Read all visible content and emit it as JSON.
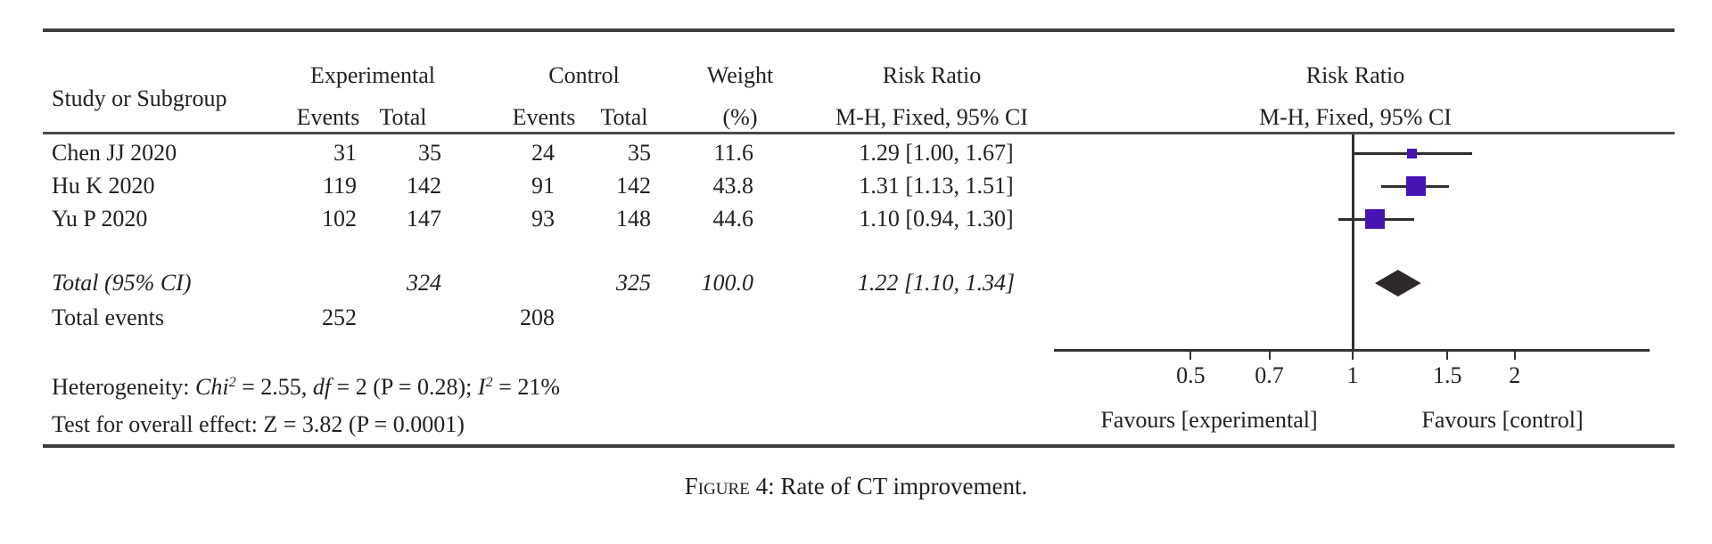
{
  "figure": {
    "caption_rich": [
      {
        "t": "Figure",
        "sc": true
      },
      {
        "t": " 4: Rate of CT improvement."
      }
    ]
  },
  "table": {
    "headers": {
      "study": "Study or Subgroup",
      "group_experimental": "Experimental",
      "group_control": "Control",
      "events": "Events",
      "total": "Total",
      "weight_line1": "Weight",
      "weight_line2": "(%)",
      "rr_line1": "Risk Ratio",
      "rr_line2": "M-H, Fixed, 95% CI"
    },
    "rows": [
      {
        "study": "Chen JJ 2020",
        "ev_exp": "31",
        "tot_exp": "35",
        "ev_ctl": "24",
        "tot_ctl": "35",
        "weight": "11.6",
        "rr_text": "1.29 [1.00, 1.67]"
      },
      {
        "study": "Hu K 2020",
        "ev_exp": "119",
        "tot_exp": "142",
        "ev_ctl": "91",
        "tot_ctl": "142",
        "weight": "43.8",
        "rr_text": "1.31 [1.13, 1.51]"
      },
      {
        "study": "Yu P 2020",
        "ev_exp": "102",
        "tot_exp": "147",
        "ev_ctl": "93",
        "tot_ctl": "148",
        "weight": "44.6",
        "rr_text": "1.10 [0.94, 1.30]"
      }
    ],
    "total_row": {
      "study": "Total (95% CI)",
      "tot_exp": "324",
      "tot_ctl": "325",
      "weight": "100.0",
      "rr_text": "1.22 [1.10, 1.34]"
    },
    "total_events_row": {
      "study": "Total events",
      "ev_exp": "252",
      "ev_ctl": "208"
    },
    "stats": {
      "heterogeneity_rich": [
        {
          "t": "Heterogeneity: "
        },
        {
          "t": "Chi",
          "i": true
        },
        {
          "t": "2",
          "i": true,
          "sup": true
        },
        {
          "t": " = 2.55, "
        },
        {
          "t": "df",
          "i": true
        },
        {
          "t": " = 2 (P = 0.28); "
        },
        {
          "t": "I",
          "i": true
        },
        {
          "t": "2",
          "i": true,
          "sup": true
        },
        {
          "t": " = 21%"
        }
      ],
      "overall_effect_rich": [
        {
          "t": "Test for overall effect: Z = 3.82 (P = 0.0001)"
        }
      ]
    }
  },
  "chart_data": {
    "type": "forest",
    "effect_measure": "Risk Ratio",
    "method": "M-H, Fixed, 95% CI",
    "x_scale": "log",
    "null_line": 1,
    "axis_ticks": [
      {
        "v": 0.5,
        "label": "0.5"
      },
      {
        "v": 0.7,
        "label": "0.7"
      },
      {
        "v": 1,
        "label": "1"
      },
      {
        "v": 1.5,
        "label": "1.5"
      },
      {
        "v": 2,
        "label": "2"
      }
    ],
    "studies": [
      {
        "name": "Chen JJ 2020",
        "rr": 1.29,
        "ci_low": 1.0,
        "ci_high": 1.67,
        "weight_pct": 11.6
      },
      {
        "name": "Hu K 2020",
        "rr": 1.31,
        "ci_low": 1.13,
        "ci_high": 1.51,
        "weight_pct": 43.8
      },
      {
        "name": "Yu P 2020",
        "rr": 1.1,
        "ci_low": 0.94,
        "ci_high": 1.3,
        "weight_pct": 44.6
      }
    ],
    "total": {
      "rr": 1.22,
      "ci_low": 1.1,
      "ci_high": 1.34,
      "weight_pct": 100.0
    },
    "favours_left": "Favours [experimental]",
    "favours_right": "Favours [control]",
    "marker_color": "#4713b2",
    "diamond_color": "#2d292a"
  }
}
